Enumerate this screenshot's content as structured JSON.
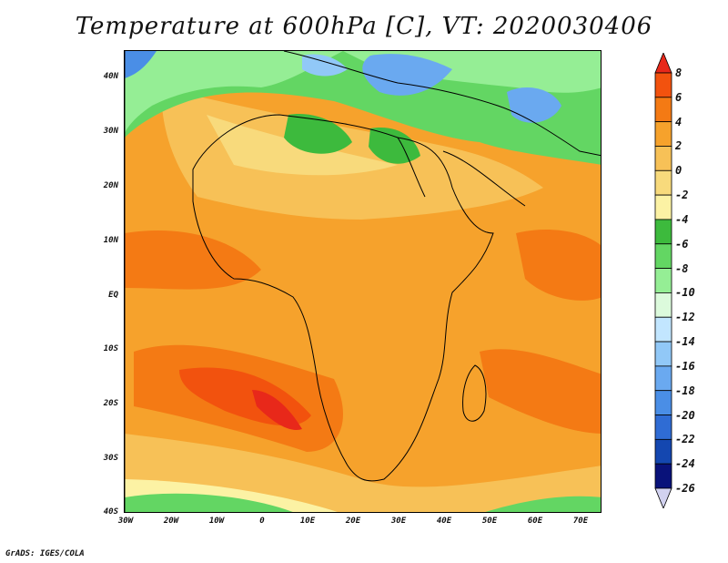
{
  "title": "Temperature at 600hPa [C], VT: 2020030406",
  "footer": "GrADS: IGES/COLA",
  "lat_labels": [
    "40N",
    "30N",
    "20N",
    "10N",
    "EQ",
    "10S",
    "20S",
    "30S",
    "40S"
  ],
  "lon_labels": [
    "30W",
    "20W",
    "10W",
    "0",
    "10E",
    "20E",
    "30E",
    "40E",
    "50E",
    "60E",
    "70E"
  ],
  "colorbar": {
    "levels": [
      "8",
      "6",
      "4",
      "2",
      "0",
      "-2",
      "-4",
      "-6",
      "-8",
      "-10",
      "-12",
      "-14",
      "-16",
      "-18",
      "-20",
      "-22",
      "-24",
      "-26"
    ],
    "colors": [
      "#e8281a",
      "#f2520e",
      "#f47a14",
      "#f6a22c",
      "#f7c157",
      "#f8da7c",
      "#fcf2a4",
      "#3dba3d",
      "#63d663",
      "#95ee95",
      "#dcfadc",
      "#c2e6ff",
      "#91c8f7",
      "#6aa9f0",
      "#4a8ee6",
      "#2f6cd4",
      "#1447b0",
      "#09127a",
      "#d2d2f0"
    ]
  },
  "colors": {
    "land_border": "#000000",
    "frame": "#000000",
    "text": "#111111"
  }
}
